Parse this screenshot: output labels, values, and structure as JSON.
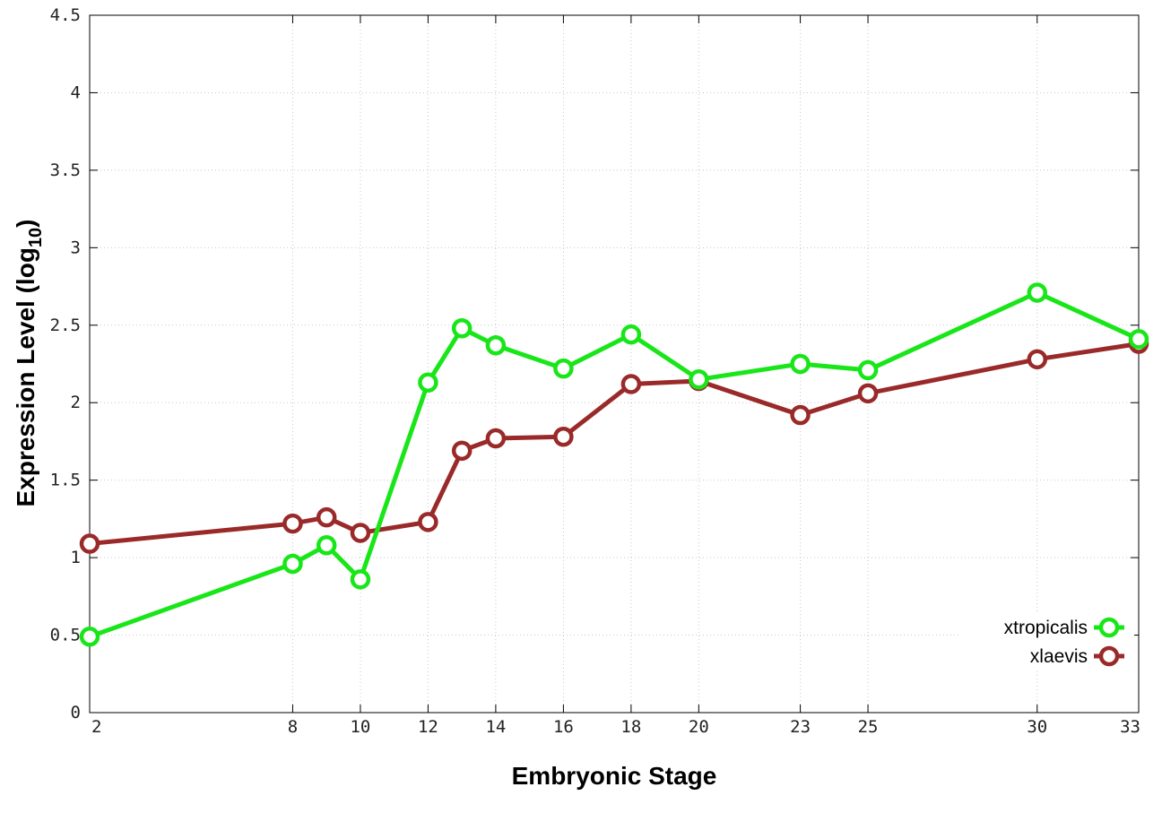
{
  "chart_data": {
    "type": "line",
    "xlabel": "Embryonic Stage",
    "ylabel_main": "Expression Level (log",
    "ylabel_sub": "10",
    "ylabel_close": ")",
    "xlim": [
      2,
      33
    ],
    "ylim": [
      0,
      4.5
    ],
    "x_ticks": [
      2,
      8,
      10,
      12,
      14,
      16,
      18,
      20,
      23,
      25,
      30,
      33
    ],
    "x_tick_labels": [
      "2",
      "8",
      "10",
      "12",
      "14",
      "16",
      "18",
      "20",
      "23",
      "25",
      "30",
      "33"
    ],
    "y_ticks": [
      0,
      0.5,
      1,
      1.5,
      2,
      2.5,
      3,
      3.5,
      4,
      4.5
    ],
    "y_tick_labels": [
      "0",
      "0.5",
      "1",
      "1.5",
      "2",
      "2.5",
      "3",
      "3.5",
      "4",
      "4.5"
    ],
    "grid": true,
    "legend_position": "bottom-right",
    "series": [
      {
        "name": "xtropicalis",
        "color": "#19e619",
        "x": [
          2,
          8,
          9,
          10,
          12,
          13,
          14,
          16,
          18,
          20,
          23,
          25,
          30,
          33
        ],
        "y": [
          0.49,
          0.96,
          1.08,
          0.86,
          2.13,
          2.48,
          2.37,
          2.22,
          2.44,
          2.15,
          2.25,
          2.21,
          2.71,
          2.41
        ]
      },
      {
        "name": "xlaevis",
        "color": "#9a2a2a",
        "x": [
          2,
          8,
          9,
          10,
          12,
          13,
          14,
          16,
          18,
          20,
          23,
          25,
          30,
          33
        ],
        "y": [
          1.09,
          1.22,
          1.26,
          1.16,
          1.23,
          1.69,
          1.77,
          1.78,
          2.12,
          2.14,
          1.92,
          2.06,
          2.28,
          2.38
        ]
      }
    ]
  }
}
